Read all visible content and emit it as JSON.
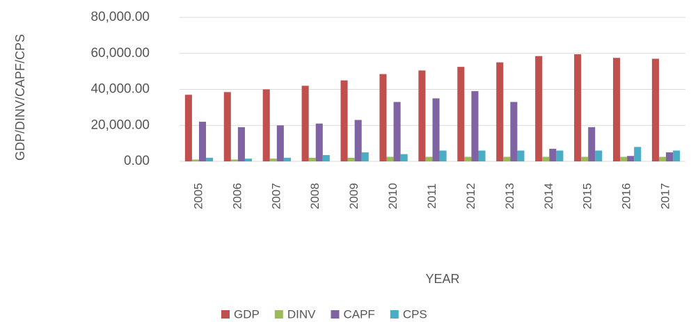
{
  "chart_data": {
    "type": "bar",
    "x_label": "YEAR",
    "y_label": "GDP/DINV/CAPF/CPS",
    "categories": [
      "2005",
      "2006",
      "2007",
      "2008",
      "2009",
      "2010",
      "2011",
      "2012",
      "2013",
      "2014",
      "2015",
      "2016",
      "2017"
    ],
    "series": [
      {
        "name": "GDP",
        "color": "#c0504d",
        "values": [
          37000,
          38500,
          40000,
          42000,
          45000,
          48500,
          50500,
          52500,
          55000,
          58500,
          59500,
          57500,
          57000
        ]
      },
      {
        "name": "DINV",
        "color": "#9bbb59",
        "values": [
          1000,
          1000,
          1500,
          2000,
          2000,
          2500,
          2500,
          2500,
          2500,
          2500,
          2500,
          2500,
          2500
        ]
      },
      {
        "name": "CAPF",
        "color": "#8064a2",
        "values": [
          22000,
          19000,
          20000,
          21000,
          23000,
          33000,
          35000,
          39000,
          33000,
          7000,
          19000,
          3000,
          5000
        ]
      },
      {
        "name": "CPS",
        "color": "#4bacc6",
        "values": [
          2000,
          1500,
          2000,
          3500,
          5000,
          4000,
          6000,
          6000,
          6000,
          6000,
          6000,
          8000,
          6000
        ]
      }
    ],
    "ylim": [
      0,
      80000
    ],
    "yticks": [
      {
        "value": 0,
        "label": "0.00"
      },
      {
        "value": 20000,
        "label": "20,000.00"
      },
      {
        "value": 40000,
        "label": "40,000.00"
      },
      {
        "value": 60000,
        "label": "60,000.00"
      },
      {
        "value": 80000,
        "label": "80,000.00"
      }
    ],
    "grid": true
  }
}
